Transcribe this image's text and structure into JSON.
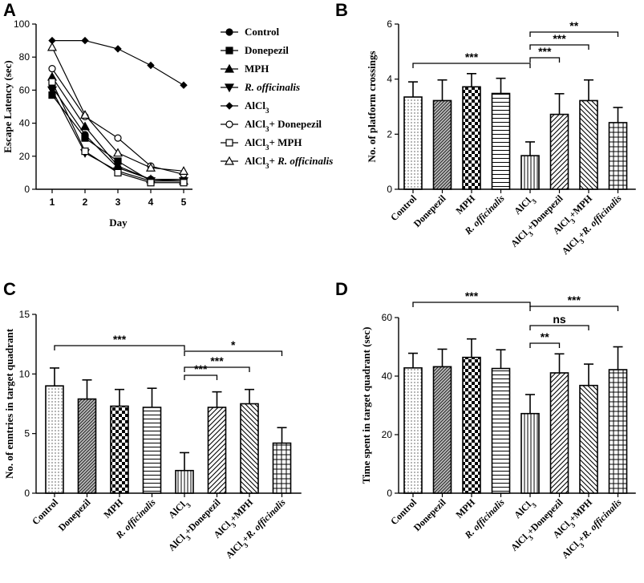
{
  "chart_data": [
    {
      "panel": "A",
      "type": "line",
      "xlabel": "Day",
      "ylabel": "Escape Latency (sec)",
      "x": [
        1,
        2,
        3,
        4,
        5
      ],
      "xticks": [
        "1",
        "2",
        "3",
        "4",
        "5"
      ],
      "ylim": [
        0,
        100
      ],
      "yticks": [
        0,
        20,
        40,
        60,
        80,
        100
      ],
      "series": [
        {
          "name": "Control",
          "marker": "circle-filled",
          "values": [
            62,
            33,
            13,
            6,
            6
          ]
        },
        {
          "name": "Donepezil",
          "marker": "square-filled",
          "values": [
            57,
            31,
            17,
            5,
            5
          ]
        },
        {
          "name": "MPH",
          "marker": "triangle-up-filled",
          "values": [
            68,
            38,
            14,
            6,
            5
          ]
        },
        {
          "name": "R. officinalis",
          "marker": "triangle-down-filled",
          "values": [
            60,
            22,
            11,
            5,
            5
          ]
        },
        {
          "name": "AlCl3",
          "marker": "diamond-filled",
          "values": [
            90,
            90,
            85,
            75,
            63
          ]
        },
        {
          "name": "AlCl3+ Donepezil",
          "marker": "circle-open",
          "values": [
            73,
            44,
            31,
            14,
            9
          ]
        },
        {
          "name": "AlCl3+ MPH",
          "marker": "square-open",
          "values": [
            65,
            23,
            10,
            4,
            4
          ]
        },
        {
          "name": "AlCl3+ R. officinalis",
          "marker": "triangle-up-open",
          "values": [
            86,
            45,
            22,
            13,
            11
          ]
        }
      ],
      "legend": {
        "pre": [
          "Control",
          "Donepezil",
          "MPH",
          "",
          "AlCl",
          "AlCl",
          "AlCl",
          "AlCl"
        ],
        "sub": [
          "",
          "",
          "",
          "",
          "3",
          "3",
          "3",
          "3"
        ],
        "mid": [
          "",
          "",
          "",
          "",
          "",
          "+ Donepezil",
          "+ MPH",
          "+ "
        ],
        "italic": [
          "",
          "",
          "",
          "R. officinalis",
          "",
          "",
          "",
          "R. officinalis"
        ]
      }
    },
    {
      "panel": "B",
      "type": "bar",
      "ylabel": "No. of platform crossings",
      "ylim": [
        0,
        6
      ],
      "yticks": [
        0,
        2,
        4,
        6
      ],
      "categories": [
        "Control",
        "Donepezil",
        "MPH",
        "R. officinalis",
        "AlCl3",
        "AlCl3+Donepezil",
        "AlCl3+MPH",
        "AlCl3+R. officinalis"
      ],
      "values": [
        3.35,
        3.22,
        3.72,
        3.48,
        1.22,
        2.72,
        3.22,
        2.42
      ],
      "errors": [
        0.55,
        0.75,
        0.48,
        0.55,
        0.5,
        0.75,
        0.75,
        0.55
      ],
      "significance": [
        {
          "from": "Control",
          "to": "AlCl3",
          "label": "***"
        },
        {
          "from": "AlCl3",
          "to": "AlCl3+Donepezil",
          "label": "***"
        },
        {
          "from": "AlCl3",
          "to": "AlCl3+MPH",
          "label": "***"
        },
        {
          "from": "AlCl3",
          "to": "AlCl3+R. officinalis",
          "label": "**"
        }
      ]
    },
    {
      "panel": "C",
      "type": "bar",
      "ylabel": "No. of enntries in target quadrant",
      "ylim": [
        0,
        15
      ],
      "yticks": [
        0,
        5,
        10,
        15
      ],
      "categories": [
        "Control",
        "Donepezil",
        "MPH",
        "R. officinalis",
        "AlCl3",
        "AlCl3+Donepezil",
        "AlCl3+MPH",
        "AlCl3+R. officinalis"
      ],
      "values": [
        9.0,
        7.9,
        7.3,
        7.2,
        1.9,
        7.2,
        7.5,
        4.2
      ],
      "errors": [
        1.5,
        1.6,
        1.4,
        1.6,
        1.5,
        1.3,
        1.2,
        1.3
      ],
      "significance": [
        {
          "from": "Control",
          "to": "AlCl3",
          "label": "***"
        },
        {
          "from": "AlCl3",
          "to": "AlCl3+Donepezil",
          "label": "***"
        },
        {
          "from": "AlCl3",
          "to": "AlCl3+MPH",
          "label": "***"
        },
        {
          "from": "AlCl3",
          "to": "AlCl3+R. officinalis",
          "label": "*"
        }
      ]
    },
    {
      "panel": "D",
      "type": "bar",
      "ylabel": "Time spent in target quadrant (sec)",
      "ylim": [
        0,
        60
      ],
      "yticks": [
        0,
        20,
        40,
        60
      ],
      "categories": [
        "Control",
        "Donepezil",
        "MPH",
        "R. officinalis",
        "AlCl3",
        "AlCl3+Donepezil",
        "AlCl3+MPH",
        "AlCl3+R. officinalis"
      ],
      "values": [
        42.8,
        43.2,
        46.4,
        42.6,
        27.2,
        41.1,
        36.8,
        42.2
      ],
      "errors": [
        5.0,
        6.0,
        6.3,
        6.4,
        6.5,
        6.5,
        7.3,
        7.8
      ],
      "significance": [
        {
          "from": "Control",
          "to": "AlCl3",
          "label": "***"
        },
        {
          "from": "AlCl3",
          "to": "AlCl3+Donepezil",
          "label": "**"
        },
        {
          "from": "AlCl3",
          "to": "AlCl3+MPH",
          "label": "ns"
        },
        {
          "from": "AlCl3",
          "to": "AlCl3+R. officinalis",
          "label": "***"
        }
      ]
    }
  ],
  "xcats": {
    "pre": [
      "Control",
      "Donepezil",
      "MPH",
      "",
      "AlCl",
      "AlCl",
      "AlCl",
      "AlCl"
    ],
    "sub": [
      "",
      "",
      "",
      "",
      "3",
      "3",
      "3",
      "3"
    ],
    "mid": [
      "",
      "",
      "",
      "",
      "",
      "+Donepezil",
      "+MPH",
      "+"
    ],
    "italic": [
      "",
      "",
      "",
      "R. officinalis",
      "",
      "",
      "",
      "R. officinalis"
    ]
  }
}
